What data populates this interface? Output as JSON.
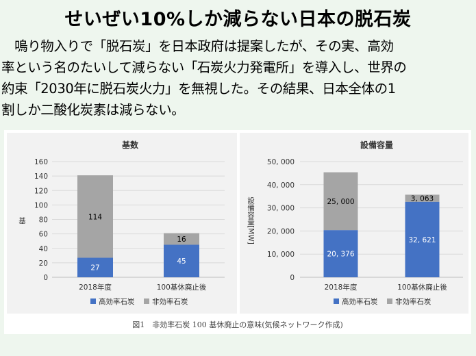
{
  "slide": {
    "title": "せいぜい10%しか減らない日本の脱石炭",
    "paragraph_lines": [
      "　嗚り物入りで「脱石炭」を日本政府は提案したが、その実、高効",
      "率という名のたいして減らない「石炭火力発電所」を導入し、世界の",
      "約束「2030年に脱石炭火力」を無視した。その結果、日本全体の1",
      "割しか二酸化炭素は減らない。"
    ]
  },
  "figure": {
    "caption": "図1　非効率石炭 100 基休廃止の意味(気候ネットワーク作成)"
  },
  "chart_data": [
    {
      "type": "bar",
      "stacked": true,
      "title": "基数",
      "ylabel": "基",
      "xlabel": "",
      "categories": [
        "2018年度",
        "100基休廃止後"
      ],
      "series": [
        {
          "name": "高効率石炭",
          "values": [
            27,
            45
          ],
          "color": "#4472c4",
          "label_color": "#ffffff"
        },
        {
          "name": "非効率石炭",
          "values": [
            114,
            16
          ],
          "color": "#a5a5a5",
          "label_color": "#000000"
        }
      ],
      "ylim": [
        0,
        160
      ],
      "yticks": [
        0,
        20,
        40,
        60,
        80,
        100,
        120,
        140,
        160
      ],
      "ytick_labels": [
        "0",
        "20",
        "40",
        "60",
        "80",
        "100",
        "120",
        "140",
        "160"
      ],
      "data_labels": [
        [
          "27",
          "45"
        ],
        [
          "114",
          "16"
        ]
      ],
      "grid": true,
      "legend": "bottom"
    },
    {
      "type": "bar",
      "stacked": true,
      "title": "設備容量",
      "ylabel": "設備容量[MW]",
      "xlabel": "",
      "categories": [
        "2018年度",
        "100基休廃止後"
      ],
      "series": [
        {
          "name": "高効率石炭",
          "values": [
            20376,
            32621
          ],
          "color": "#4472c4",
          "label_color": "#ffffff"
        },
        {
          "name": "非効率石炭",
          "values": [
            25000,
            3063
          ],
          "color": "#a5a5a5",
          "label_color": "#000000"
        }
      ],
      "ylim": [
        0,
        50000
      ],
      "yticks": [
        0,
        10000,
        20000,
        30000,
        40000,
        50000
      ],
      "ytick_labels": [
        "0",
        "10, 000",
        "20, 000",
        "30, 000",
        "40, 000",
        "50, 000"
      ],
      "data_labels": [
        [
          "20, 376",
          "32, 621"
        ],
        [
          "25, 000",
          "3, 063"
        ]
      ],
      "grid": true,
      "legend": "bottom"
    }
  ]
}
